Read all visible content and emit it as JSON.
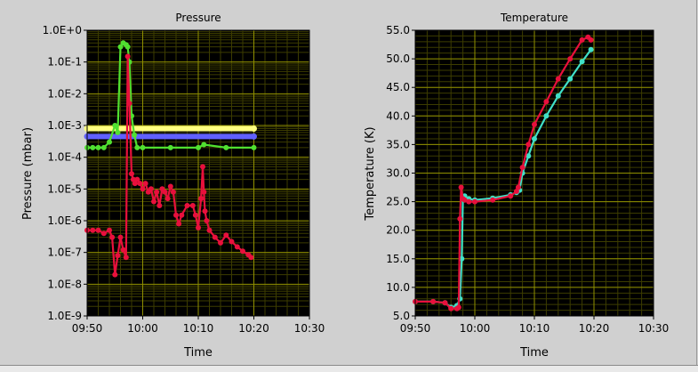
{
  "colors": {
    "plot_bg": "#000000",
    "major_grid": "#8f8f00",
    "minor_grid": "#3c3c00",
    "panel_bg": "#d0d0d0"
  },
  "chart_data": [
    {
      "type": "scatter",
      "title": "Pressure",
      "xlabel": "Time",
      "ylabel": "Pressure (mbar)",
      "yscale": "log",
      "ylim": [
        1e-09,
        1
      ],
      "xlim": [
        "09:50",
        "10:30"
      ],
      "x_ticks": [
        "09:50",
        "10:00",
        "10:10",
        "10:20",
        "10:30"
      ],
      "y_ticks": [
        "1.0E-9",
        "1.0E-8",
        "1.0E-7",
        "1.0E-6",
        "1.0E-5",
        "1.0E-4",
        "1.0E-3",
        "1.0E-2",
        "1.0E-1",
        "1.0E+0"
      ],
      "grid": true,
      "series": [
        {
          "color": "#ffff80",
          "x": [
            "09:50",
            "10:20"
          ],
          "y": [
            0.0008,
            0.0008
          ]
        },
        {
          "color": "#6060ff",
          "x": [
            "09:50",
            "10:20"
          ],
          "y": [
            0.00045,
            0.00045
          ]
        },
        {
          "color": "#50e030",
          "x": [
            "09:50",
            "09:51",
            "09:52",
            "09:53",
            "09:54",
            "09:55",
            "09:55.5",
            "09:56",
            "09:56.5",
            "09:57",
            "09:57.3",
            "09:57.6",
            "09:58",
            "09:58.5",
            "09:59",
            "10:00",
            "10:05",
            "10:10",
            "10:11",
            "10:15",
            "10:20"
          ],
          "y": [
            0.0002,
            0.0002,
            0.0002,
            0.0002,
            0.0003,
            0.001,
            0.0006,
            0.3,
            0.4,
            0.35,
            0.3,
            0.1,
            0.002,
            0.0005,
            0.0002,
            0.0002,
            0.0002,
            0.0002,
            0.00025,
            0.0002,
            0.0002
          ]
        },
        {
          "color": "#e8103c",
          "x": [
            "09:50",
            "09:51",
            "09:52",
            "09:53",
            "09:54",
            "09:54.5",
            "09:55",
            "09:55.5",
            "09:56",
            "09:56.5",
            "09:57",
            "09:57.3",
            "09:57.6",
            "09:58",
            "09:58.3",
            "09:58.6",
            "09:59",
            "09:59.5",
            "10:00",
            "10:00.5",
            "10:01",
            "10:01.5",
            "10:02",
            "10:02.5",
            "10:03",
            "10:03.5",
            "10:04",
            "10:04.5",
            "10:05",
            "10:05.5",
            "10:06",
            "10:06.5",
            "10:07",
            "10:08",
            "10:09",
            "10:09.5",
            "10:10",
            "10:10.5",
            "10:10.8",
            "10:11",
            "10:11.2",
            "10:11.5",
            "10:12",
            "10:13",
            "10:14",
            "10:15",
            "10:16",
            "10:17",
            "10:18",
            "10:19",
            "10:19.5"
          ],
          "y": [
            5e-07,
            5e-07,
            5e-07,
            4e-07,
            5e-07,
            3e-07,
            2e-08,
            8e-08,
            3e-07,
            1.2e-07,
            7e-08,
            0.15,
            0.005,
            3e-05,
            2e-05,
            1.5e-05,
            2e-05,
            1.5e-05,
            1e-05,
            1.5e-05,
            8e-06,
            1e-05,
            4e-06,
            8e-06,
            3e-06,
            1e-05,
            8e-06,
            5e-06,
            1.2e-05,
            8e-06,
            1.5e-06,
            8e-07,
            1.5e-06,
            3e-06,
            3e-06,
            1.5e-06,
            6e-07,
            5e-06,
            5e-05,
            8e-06,
            2e-06,
            1e-06,
            5e-07,
            3e-07,
            2e-07,
            3.5e-07,
            2.2e-07,
            1.5e-07,
            1.1e-07,
            8.5e-08,
            7e-08
          ]
        }
      ]
    },
    {
      "type": "scatter",
      "title": "Temperature",
      "xlabel": "Time",
      "ylabel": "Temperature (K)",
      "ylim": [
        5,
        55
      ],
      "xlim": [
        "09:50",
        "10:30"
      ],
      "x_ticks": [
        "09:50",
        "10:00",
        "10:10",
        "10:20",
        "10:30"
      ],
      "y_ticks": [
        "5.0",
        "10.0",
        "15.0",
        "20.0",
        "25.0",
        "30.0",
        "35.0",
        "40.0",
        "45.0",
        "50.0",
        "55.0"
      ],
      "grid": true,
      "series": [
        {
          "color": "#40e0c8",
          "x": [
            "09:50",
            "09:53",
            "09:55",
            "09:56",
            "09:57",
            "09:57.5",
            "09:57.8",
            "09:58",
            "09:58.3",
            "09:59",
            "10:00",
            "10:03",
            "10:06",
            "10:07",
            "10:07.5",
            "10:08",
            "10:09",
            "10:10",
            "10:12",
            "10:14",
            "10:16",
            "10:18",
            "10:19.5"
          ],
          "y": [
            7.5,
            7.5,
            7.3,
            6.5,
            6.8,
            8,
            15,
            25.5,
            26,
            25.5,
            25.3,
            25.6,
            26.2,
            26.6,
            27,
            30,
            33,
            36,
            40,
            43.5,
            46.5,
            49.5,
            51.6
          ]
        },
        {
          "color": "#e8103c",
          "x": [
            "09:50",
            "09:53",
            "09:55",
            "09:56",
            "09:57",
            "09:57.3",
            "09:57.5",
            "09:57.7",
            "09:58",
            "09:58.3",
            "09:59",
            "10:00",
            "10:03",
            "10:06",
            "10:07",
            "10:07.3",
            "10:08",
            "10:09",
            "10:10",
            "10:12",
            "10:14",
            "10:16",
            "10:18",
            "10:19",
            "10:19.5"
          ],
          "y": [
            7.5,
            7.5,
            7.3,
            6.3,
            6.3,
            6.5,
            22,
            27.5,
            25.5,
            25.3,
            25,
            25,
            25.3,
            26,
            26.8,
            27.5,
            31,
            35,
            38.5,
            42.5,
            46.5,
            50,
            53.3,
            53.8,
            53.3
          ]
        }
      ]
    }
  ]
}
